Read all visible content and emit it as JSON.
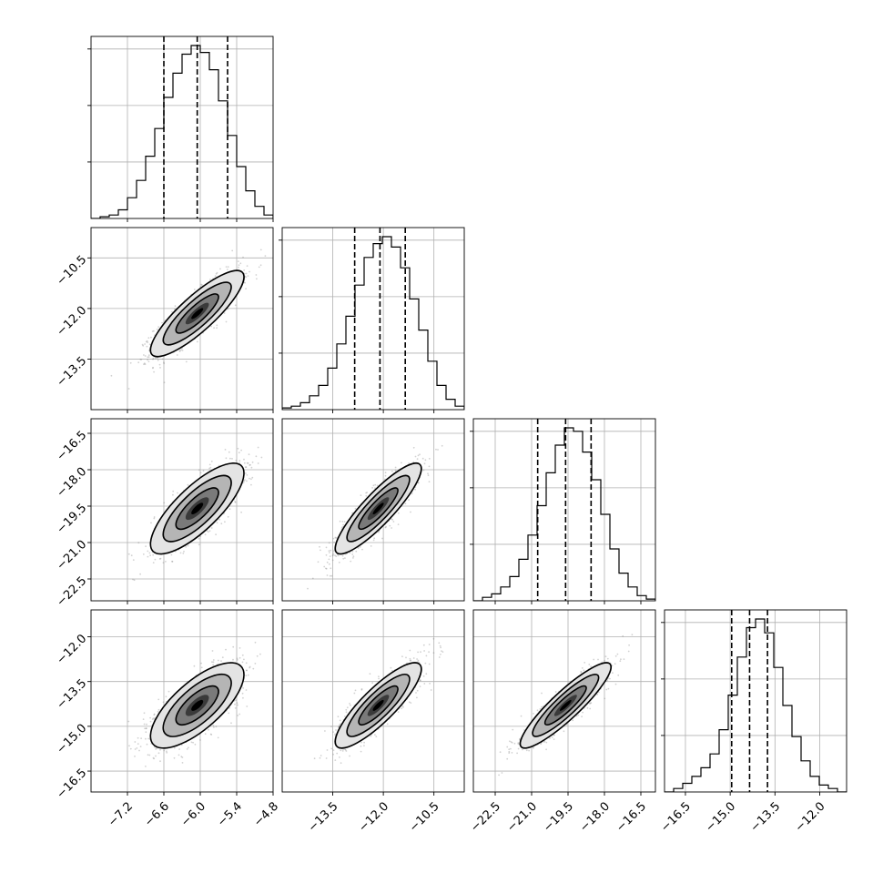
{
  "chart_data": {
    "type": "corner",
    "title": "",
    "parameters": [
      "",
      "",
      "",
      ""
    ],
    "axis_ranges": [
      [
        -7.8,
        -4.8
      ],
      [
        -15.0,
        -9.6
      ],
      [
        -23.4,
        -15.9
      ],
      [
        -17.2,
        -11.1
      ]
    ],
    "ticks": [
      [
        "-7.2",
        "-6.6",
        "-6.0",
        "-5.4",
        "-4.8"
      ],
      [
        "-13.5",
        "-12.0",
        "-10.5"
      ],
      [
        "-22.5",
        "-21.0",
        "-19.5",
        "-18.0",
        "-16.5"
      ],
      [
        "-16.5",
        "-15.0",
        "-13.5",
        "-12.0"
      ]
    ],
    "tick_values": [
      [
        -7.2,
        -6.6,
        -6.0,
        -5.4,
        -4.8
      ],
      [
        -13.5,
        -12.0,
        -10.5
      ],
      [
        -22.5,
        -21.0,
        -19.5,
        -18.0,
        -16.5
      ],
      [
        -16.5,
        -15.0,
        -13.5,
        -12.0
      ]
    ],
    "marginals": [
      {
        "quantiles": [
          -6.6,
          -6.05,
          -5.55
        ],
        "peak": -6.0,
        "bin_edges": [
          -7.8,
          -7.65,
          -7.5,
          -7.35,
          -7.2,
          -7.05,
          -6.9,
          -6.75,
          -6.6,
          -6.45,
          -6.3,
          -6.15,
          -6.0,
          -5.85,
          -5.7,
          -5.55,
          -5.4,
          -5.25,
          -5.1,
          -4.95,
          -4.8
        ],
        "counts": [
          0.0,
          0.01,
          0.02,
          0.05,
          0.12,
          0.22,
          0.36,
          0.52,
          0.7,
          0.84,
          0.95,
          1.0,
          0.96,
          0.86,
          0.68,
          0.48,
          0.3,
          0.16,
          0.07,
          0.02
        ]
      },
      {
        "quantiles": [
          -12.85,
          -12.1,
          -11.35
        ],
        "peak": -12.0,
        "bin_edges": [
          -15.0,
          -14.73,
          -14.46,
          -14.19,
          -13.92,
          -13.65,
          -13.38,
          -13.11,
          -12.84,
          -12.57,
          -12.3,
          -12.03,
          -11.76,
          -11.49,
          -11.22,
          -10.95,
          -10.68,
          -10.41,
          -10.14,
          -9.87,
          -9.6
        ],
        "counts": [
          0.01,
          0.02,
          0.04,
          0.08,
          0.14,
          0.24,
          0.38,
          0.54,
          0.72,
          0.88,
          0.96,
          1.0,
          0.94,
          0.82,
          0.64,
          0.46,
          0.28,
          0.14,
          0.06,
          0.02
        ]
      },
      {
        "quantiles": [
          -20.75,
          -19.6,
          -18.55
        ],
        "peak": -19.5,
        "bin_edges": [
          -23.4,
          -23.025,
          -22.65,
          -22.275,
          -21.9,
          -21.525,
          -21.15,
          -20.775,
          -20.4,
          -20.025,
          -19.65,
          -19.275,
          -18.9,
          -18.525,
          -18.15,
          -17.775,
          -17.4,
          -17.025,
          -16.65,
          -16.275,
          -15.9
        ],
        "counts": [
          0.0,
          0.02,
          0.04,
          0.08,
          0.14,
          0.24,
          0.38,
          0.55,
          0.74,
          0.9,
          1.0,
          0.98,
          0.86,
          0.7,
          0.5,
          0.3,
          0.16,
          0.08,
          0.03,
          0.01
        ]
      },
      {
        "quantiles": [
          -14.95,
          -14.35,
          -13.75
        ],
        "peak": -14.2,
        "bin_edges": [
          -17.2,
          -16.895,
          -16.59,
          -16.285,
          -15.98,
          -15.675,
          -15.37,
          -15.065,
          -14.76,
          -14.455,
          -14.15,
          -13.845,
          -13.54,
          -13.235,
          -12.93,
          -12.625,
          -12.32,
          -12.015,
          -11.71,
          -11.405,
          -11.1
        ],
        "counts": [
          0.0,
          0.02,
          0.05,
          0.09,
          0.14,
          0.22,
          0.36,
          0.56,
          0.78,
          0.95,
          1.0,
          0.92,
          0.72,
          0.5,
          0.32,
          0.18,
          0.09,
          0.04,
          0.02,
          0.0
        ]
      }
    ],
    "joint": [
      {
        "row": 1,
        "col": 0,
        "mean": [
          -6.05,
          -12.15
        ],
        "sigma": [
          0.35,
          0.58
        ],
        "rho": 0.85
      },
      {
        "row": 2,
        "col": 0,
        "mean": [
          -6.05,
          -19.6
        ],
        "sigma": [
          0.35,
          0.85
        ],
        "rho": 0.78
      },
      {
        "row": 2,
        "col": 1,
        "mean": [
          -12.15,
          -19.6
        ],
        "sigma": [
          0.58,
          0.85
        ],
        "rho": 0.88
      },
      {
        "row": 3,
        "col": 0,
        "mean": [
          -6.05,
          -14.3
        ],
        "sigma": [
          0.35,
          0.65
        ],
        "rho": 0.72
      },
      {
        "row": 3,
        "col": 1,
        "mean": [
          -12.15,
          -14.3
        ],
        "sigma": [
          0.58,
          0.65
        ],
        "rho": 0.85
      },
      {
        "row": 3,
        "col": 2,
        "mean": [
          -19.6,
          -14.3
        ],
        "sigma": [
          0.85,
          0.65
        ],
        "rho": 0.9
      }
    ],
    "contour_levels_sigma": [
      1.0,
      1.6,
      2.2
    ],
    "grid": true,
    "colors": {
      "line": "#000000",
      "grid": "#b0b0b0",
      "points": "#7f7f7f",
      "density": [
        "#e4e4e4",
        "#b5b5b5",
        "#7a7a7a",
        "#3a3a3a",
        "#000000"
      ]
    }
  }
}
